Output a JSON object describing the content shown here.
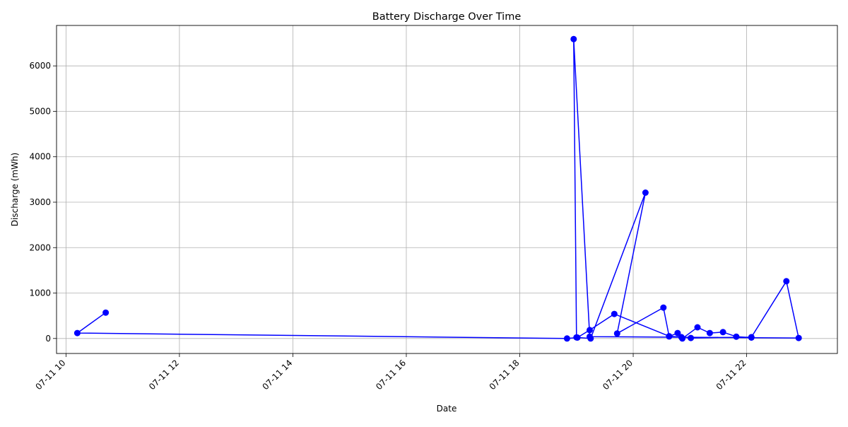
{
  "chart_data": {
    "type": "line",
    "title": "Battery Discharge Over Time",
    "xlabel": "Date",
    "ylabel": "Discharge (mWh)",
    "grid": true,
    "series_color": "#0000ff",
    "xlim": [
      "07-11 09:50",
      "07-11 23:36"
    ],
    "ylim": [
      -330,
      6890
    ],
    "x_ticks": [
      "07-11 10",
      "07-11 12",
      "07-11 14",
      "07-11 16",
      "07-11 18",
      "07-11 20",
      "07-11 22"
    ],
    "y_ticks": [
      0,
      1000,
      2000,
      3000,
      4000,
      5000,
      6000
    ],
    "series": [
      {
        "points": [
          {
            "x": "07-11 10:42",
            "y": 570
          },
          {
            "x": "07-11 10:12",
            "y": 120
          },
          {
            "x": "07-11 18:50",
            "y": 0
          },
          {
            "x": "07-11 19:01",
            "y": 20
          },
          {
            "x": "07-11 19:14",
            "y": 185
          },
          {
            "x": "07-11 19:40",
            "y": 540
          },
          {
            "x": "07-11 20:38",
            "y": 50
          },
          {
            "x": "07-11 20:51",
            "y": 30
          },
          {
            "x": "07-11 21:01",
            "y": 10
          },
          {
            "x": "07-11 22:05",
            "y": 30
          },
          {
            "x": "07-11 22:42",
            "y": 1260
          },
          {
            "x": "07-11 22:55",
            "y": 10
          },
          {
            "x": "07-11 19:14",
            "y": 40
          },
          {
            "x": "07-11 18:57",
            "y": 6590
          },
          {
            "x": "07-11 19:00",
            "y": 25
          },
          {
            "x": "07-11 19:15",
            "y": 0
          },
          {
            "x": "07-11 20:13",
            "y": 3210
          },
          {
            "x": "07-11 19:43",
            "y": 110
          },
          {
            "x": "07-11 20:32",
            "y": 680
          },
          {
            "x": "07-11 20:38",
            "y": 45
          },
          {
            "x": "07-11 20:47",
            "y": 120
          },
          {
            "x": "07-11 20:52",
            "y": 0
          },
          {
            "x": "07-11 21:08",
            "y": 245
          },
          {
            "x": "07-11 21:21",
            "y": 120
          },
          {
            "x": "07-11 21:35",
            "y": 140
          },
          {
            "x": "07-11 21:49",
            "y": 40
          },
          {
            "x": "07-11 22:05",
            "y": 20
          }
        ]
      }
    ]
  }
}
